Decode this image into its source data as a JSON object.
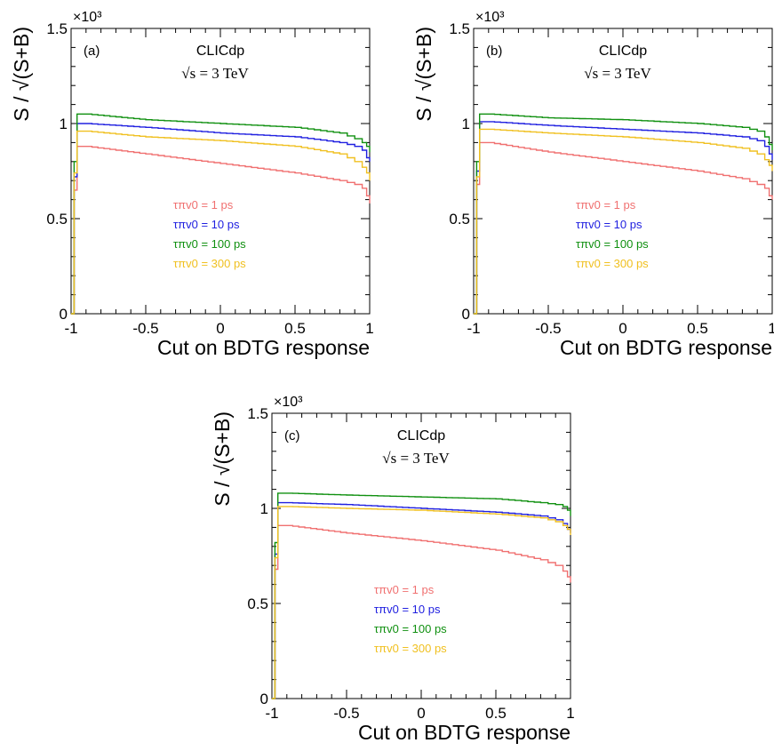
{
  "chart_data": [
    {
      "type": "line",
      "panel_label": "(a)",
      "experiment_label": "CLICdp",
      "energy_label": "√s = 3 TeV",
      "xlabel": "Cut on BDTG response",
      "ylabel": "S / √(S+B)",
      "y_multiplier": "×10³",
      "xlim": [
        -1,
        1
      ],
      "ylim": [
        0,
        1.5
      ],
      "x_ticks": [
        "-1",
        "-0.5",
        "0",
        "0.5",
        "1"
      ],
      "y_ticks": [
        "0",
        "0.5",
        "1",
        "1.5"
      ],
      "step": "histogram",
      "series": [
        {
          "name": "τπv0 = 1 ps",
          "color": "#f07070",
          "x": [
            -1.0,
            -0.98,
            -0.96,
            -0.9,
            -0.5,
            0.0,
            0.5,
            0.8,
            0.9,
            0.95,
            0.98,
            1.0
          ],
          "values": [
            0.0,
            0.65,
            0.88,
            0.88,
            0.84,
            0.79,
            0.74,
            0.7,
            0.68,
            0.66,
            0.62,
            0.58
          ]
        },
        {
          "name": "τπv0 = 10 ps",
          "color": "#2020e0",
          "x": [
            -1.0,
            -0.98,
            -0.96,
            -0.9,
            -0.5,
            0.0,
            0.5,
            0.8,
            0.9,
            0.95,
            0.98,
            1.0
          ],
          "values": [
            0.0,
            0.72,
            1.0,
            1.0,
            0.98,
            0.95,
            0.93,
            0.9,
            0.88,
            0.86,
            0.82,
            0.8
          ]
        },
        {
          "name": "τπv0 = 100 ps",
          "color": "#109010",
          "x": [
            -1.0,
            -0.98,
            -0.96,
            -0.9,
            -0.5,
            0.0,
            0.5,
            0.8,
            0.9,
            0.95,
            0.98,
            1.0
          ],
          "values": [
            0.0,
            0.8,
            1.05,
            1.05,
            1.02,
            1.0,
            0.98,
            0.95,
            0.92,
            0.9,
            0.88,
            0.85
          ]
        },
        {
          "name": "τπv0 = 300 ps",
          "color": "#f0c020",
          "x": [
            -1.0,
            -0.98,
            -0.96,
            -0.9,
            -0.5,
            0.0,
            0.5,
            0.8,
            0.9,
            0.95,
            0.98,
            1.0
          ],
          "values": [
            0.0,
            0.74,
            0.96,
            0.96,
            0.93,
            0.91,
            0.88,
            0.84,
            0.8,
            0.77,
            0.74,
            0.7
          ]
        }
      ]
    },
    {
      "type": "line",
      "panel_label": "(b)",
      "experiment_label": "CLICdp",
      "energy_label": "√s = 3 TeV",
      "xlabel": "Cut on BDTG response",
      "ylabel": "S / √(S+B)",
      "y_multiplier": "×10³",
      "xlim": [
        -1,
        1
      ],
      "ylim": [
        0,
        1.5
      ],
      "x_ticks": [
        "-1",
        "-0.5",
        "0",
        "0.5",
        "1"
      ],
      "y_ticks": [
        "0",
        "0.5",
        "1",
        "1.5"
      ],
      "step": "histogram",
      "series": [
        {
          "name": "τπv0 = 1 ps",
          "color": "#f07070",
          "x": [
            -1.0,
            -0.98,
            -0.96,
            -0.9,
            -0.5,
            0.0,
            0.5,
            0.8,
            0.9,
            0.95,
            0.98,
            1.0
          ],
          "values": [
            0.0,
            0.68,
            0.9,
            0.9,
            0.85,
            0.8,
            0.75,
            0.71,
            0.68,
            0.66,
            0.62,
            0.6
          ]
        },
        {
          "name": "τπv0 = 10 ps",
          "color": "#2020e0",
          "x": [
            -1.0,
            -0.98,
            -0.96,
            -0.9,
            -0.5,
            0.0,
            0.5,
            0.8,
            0.9,
            0.95,
            0.98,
            1.0
          ],
          "values": [
            0.0,
            0.75,
            1.01,
            1.01,
            0.99,
            0.97,
            0.95,
            0.93,
            0.91,
            0.88,
            0.84,
            0.81
          ]
        },
        {
          "name": "τπv0 = 100 ps",
          "color": "#109010",
          "x": [
            -1.0,
            -0.98,
            -0.96,
            -0.9,
            -0.5,
            0.0,
            0.5,
            0.8,
            0.9,
            0.95,
            0.98,
            1.0
          ],
          "values": [
            0.0,
            0.8,
            1.05,
            1.05,
            1.03,
            1.02,
            1.0,
            0.98,
            0.96,
            0.93,
            0.89,
            0.86
          ]
        },
        {
          "name": "τπv0 = 300 ps",
          "color": "#f0c020",
          "x": [
            -1.0,
            -0.98,
            -0.96,
            -0.9,
            -0.5,
            0.0,
            0.5,
            0.8,
            0.9,
            0.95,
            0.98,
            1.0
          ],
          "values": [
            0.0,
            0.72,
            0.97,
            0.97,
            0.95,
            0.93,
            0.9,
            0.87,
            0.84,
            0.81,
            0.78,
            0.75
          ]
        }
      ]
    },
    {
      "type": "line",
      "panel_label": "(c)",
      "experiment_label": "CLICdp",
      "energy_label": "√s = 3 TeV",
      "xlabel": "Cut on BDTG response",
      "ylabel": "S / √(S+B)",
      "y_multiplier": "×10³",
      "xlim": [
        -1,
        1
      ],
      "ylim": [
        0,
        1.5
      ],
      "x_ticks": [
        "-1",
        "-0.5",
        "0",
        "0.5",
        "1"
      ],
      "y_ticks": [
        "0",
        "0.5",
        "1",
        "1.5"
      ],
      "step": "histogram",
      "series": [
        {
          "name": "τπv0 = 1 ps",
          "color": "#f07070",
          "x": [
            -1.0,
            -0.98,
            -0.96,
            -0.9,
            -0.5,
            0.0,
            0.5,
            0.8,
            0.9,
            0.95,
            0.98,
            1.0
          ],
          "values": [
            0.0,
            0.68,
            0.91,
            0.91,
            0.87,
            0.83,
            0.78,
            0.73,
            0.7,
            0.67,
            0.64,
            0.61
          ]
        },
        {
          "name": "τπv0 = 10 ps",
          "color": "#2020e0",
          "x": [
            -1.0,
            -0.98,
            -0.96,
            -0.9,
            -0.5,
            0.0,
            0.5,
            0.8,
            0.9,
            0.95,
            0.98,
            1.0
          ],
          "values": [
            0.0,
            0.76,
            1.03,
            1.03,
            1.02,
            1.0,
            0.98,
            0.96,
            0.94,
            0.92,
            0.89,
            0.87
          ]
        },
        {
          "name": "τπv0 = 100 ps",
          "color": "#109010",
          "x": [
            -1.0,
            -0.98,
            -0.96,
            -0.9,
            -0.5,
            0.0,
            0.5,
            0.8,
            0.9,
            0.95,
            0.98,
            1.0
          ],
          "values": [
            0.0,
            0.82,
            1.08,
            1.08,
            1.07,
            1.06,
            1.05,
            1.03,
            1.02,
            1.01,
            0.99,
            0.96
          ]
        },
        {
          "name": "τπv0 = 300 ps",
          "color": "#f0c020",
          "x": [
            -1.0,
            -0.98,
            -0.96,
            -0.9,
            -0.5,
            0.0,
            0.5,
            0.8,
            0.9,
            0.95,
            0.98,
            1.0
          ],
          "values": [
            0.0,
            0.74,
            1.01,
            1.01,
            1.0,
            0.99,
            0.97,
            0.95,
            0.93,
            0.91,
            0.89,
            0.86
          ]
        }
      ]
    }
  ]
}
